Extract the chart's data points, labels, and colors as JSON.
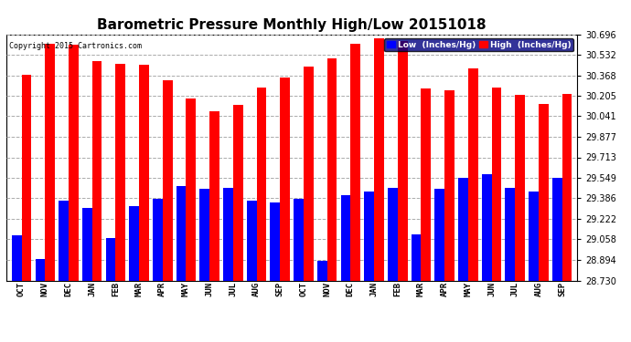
{
  "title": "Barometric Pressure Monthly High/Low 20151018",
  "copyright": "Copyright 2015 Cartronics.com",
  "legend_low": "Low  (Inches/Hg)",
  "legend_high": "High  (Inches/Hg)",
  "categories": [
    "OCT",
    "NOV",
    "DEC",
    "JAN",
    "FEB",
    "MAR",
    "APR",
    "MAY",
    "JUN",
    "JUL",
    "AUG",
    "SEP",
    "OCT",
    "NOV",
    "DEC",
    "JAN",
    "FEB",
    "MAR",
    "APR",
    "MAY",
    "JUN",
    "JUL",
    "AUG",
    "SEP"
  ],
  "high_values": [
    30.37,
    30.62,
    30.61,
    30.48,
    30.46,
    30.45,
    30.33,
    30.18,
    30.08,
    30.13,
    30.27,
    30.35,
    30.44,
    30.5,
    30.62,
    30.66,
    30.64,
    30.26,
    30.25,
    30.42,
    30.27,
    30.21,
    30.14,
    30.22
  ],
  "low_values": [
    29.09,
    28.9,
    29.37,
    29.31,
    29.07,
    29.32,
    29.38,
    29.48,
    29.46,
    29.47,
    29.37,
    29.35,
    29.38,
    28.89,
    29.41,
    29.44,
    29.47,
    29.1,
    29.46,
    29.55,
    29.58,
    29.47,
    29.44,
    29.55
  ],
  "ymin": 28.73,
  "ymax": 30.696,
  "yticks": [
    28.73,
    28.894,
    29.058,
    29.222,
    29.386,
    29.549,
    29.713,
    29.877,
    30.041,
    30.205,
    30.368,
    30.532,
    30.696
  ],
  "bar_color_high": "#FF0000",
  "bar_color_low": "#0000FF",
  "background_color": "#FFFFFF",
  "plot_background": "#FFFFFF",
  "grid_color": "#AAAAAA",
  "title_fontsize": 11,
  "tick_fontsize": 7,
  "bar_width": 0.42
}
